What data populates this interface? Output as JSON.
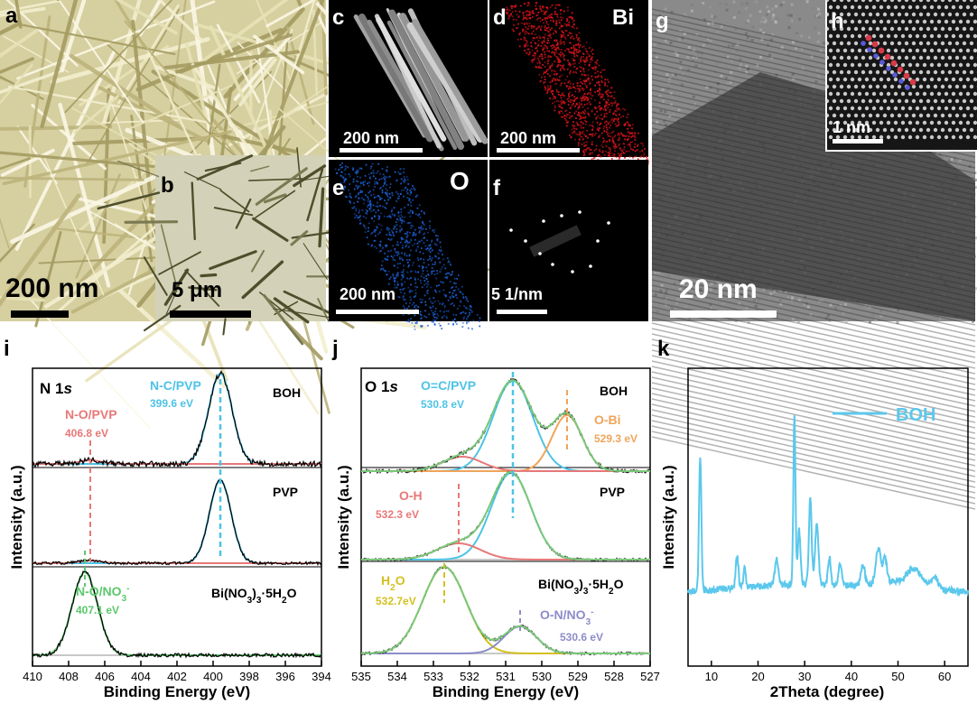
{
  "images": {
    "a": {
      "label": "a",
      "scale": "200 nm",
      "bg": "#d4cd9c"
    },
    "b": {
      "label": "b",
      "scale": "5 μm",
      "bg": "#cfcdb3"
    },
    "c": {
      "label": "c",
      "scale": "200 nm"
    },
    "d": {
      "label": "d",
      "scale": "200 nm",
      "element": "Bi",
      "color": "#d8141a"
    },
    "e": {
      "label": "e",
      "scale": "200 nm",
      "element": "O",
      "color": "#1b5fd1"
    },
    "f": {
      "label": "f",
      "scale": "5 1/nm"
    },
    "g": {
      "label": "g",
      "scale": "20 nm"
    },
    "h": {
      "label": "h",
      "scale": "1 nm"
    }
  },
  "chart_data": [
    {
      "panel": "i",
      "type": "line",
      "title": "N 1s",
      "xlabel": "Binding Energy (eV)",
      "ylabel": "Intensity (a.u.)",
      "xlim": [
        410,
        394
      ],
      "xticks": [
        "410",
        "408",
        "406",
        "404",
        "402",
        "400",
        "398",
        "396",
        "394"
      ],
      "traces": [
        {
          "name": "BOH",
          "peaks": [
            {
              "label": "N-C/PVP",
              "value": "399.6 eV",
              "center": 399.6,
              "color": "#4dc3e6"
            },
            {
              "label": "N-O/PVP",
              "value": "406.8 eV",
              "center": 406.8,
              "color": "#e87878"
            }
          ]
        },
        {
          "name": "PVP",
          "peaks": []
        },
        {
          "name": "Bi(NO3)3·5H2O",
          "peaks": [
            {
              "label": "N-O/NO3-",
              "value": "407.1 eV",
              "center": 407.1,
              "color": "#5ac86b"
            }
          ]
        }
      ]
    },
    {
      "panel": "j",
      "type": "line",
      "title": "O 1s",
      "xlabel": "Binding Energy (eV)",
      "ylabel": "Intensity (a.u.)",
      "xlim": [
        535,
        527
      ],
      "xticks": [
        "535",
        "534",
        "533",
        "532",
        "531",
        "530",
        "529",
        "528",
        "527"
      ],
      "traces": [
        {
          "name": "BOH",
          "peaks": [
            {
              "label": "O=C/PVP",
              "value": "530.8 eV",
              "center": 530.8,
              "color": "#4dc3e6"
            },
            {
              "label": "O-Bi",
              "value": "529.3 eV",
              "center": 529.3,
              "color": "#f0a45a"
            }
          ]
        },
        {
          "name": "PVP",
          "peaks": [
            {
              "label": "O-H",
              "value": "532.3 eV",
              "center": 532.3,
              "color": "#e87878"
            }
          ]
        },
        {
          "name": "Bi(NO3)3·5H2O",
          "peaks": [
            {
              "label": "H2O",
              "value": "532.7eV",
              "center": 532.7,
              "color": "#d4c020"
            },
            {
              "label": "O-N/NO3-",
              "value": "530.6 eV",
              "center": 530.6,
              "color": "#8c8cc8"
            }
          ]
        }
      ]
    },
    {
      "panel": "k",
      "type": "line",
      "xlabel": "2Theta (degree)",
      "ylabel": "Intensity (a.u.)",
      "xlim": [
        5,
        65
      ],
      "xticks": [
        "10",
        "20",
        "30",
        "40",
        "50",
        "60"
      ],
      "series": [
        {
          "name": "BOH",
          "color": "#5bc8ec"
        }
      ],
      "peaks_2theta": [
        7.6,
        15.5,
        17.1,
        24.0,
        27.8,
        31.2,
        32.6,
        35.3,
        37.6,
        42.5,
        45.8,
        47.2,
        53.5,
        58.0
      ]
    }
  ]
}
